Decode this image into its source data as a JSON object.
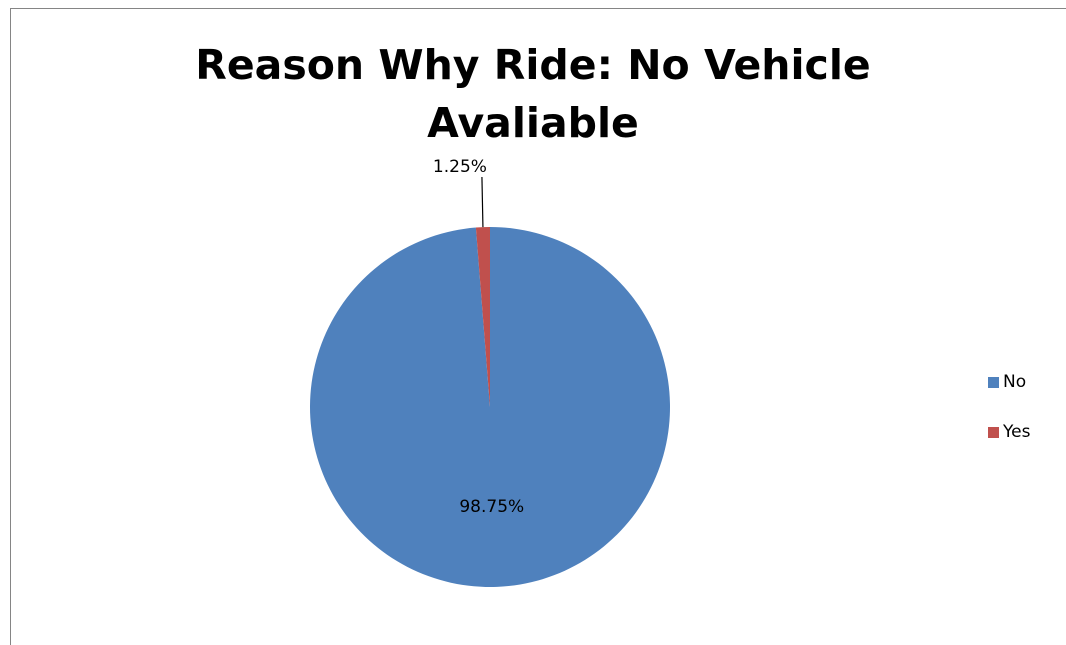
{
  "chart_data": {
    "type": "pie",
    "title": "Reason Why Ride: No Vehicle Avaliable",
    "title_lines": [
      "Reason Why Ride: No Vehicle",
      "Avaliable"
    ],
    "categories": [
      "No",
      "Yes"
    ],
    "values": [
      98.75,
      1.25
    ],
    "data_labels": [
      "98.75%",
      "1.25%"
    ],
    "colors": [
      "#4F81BD",
      "#C0504D"
    ],
    "legend": {
      "placement": "right",
      "entries": [
        {
          "label": "No",
          "color": "#4F81BD"
        },
        {
          "label": "Yes",
          "color": "#C0504D"
        }
      ]
    }
  }
}
